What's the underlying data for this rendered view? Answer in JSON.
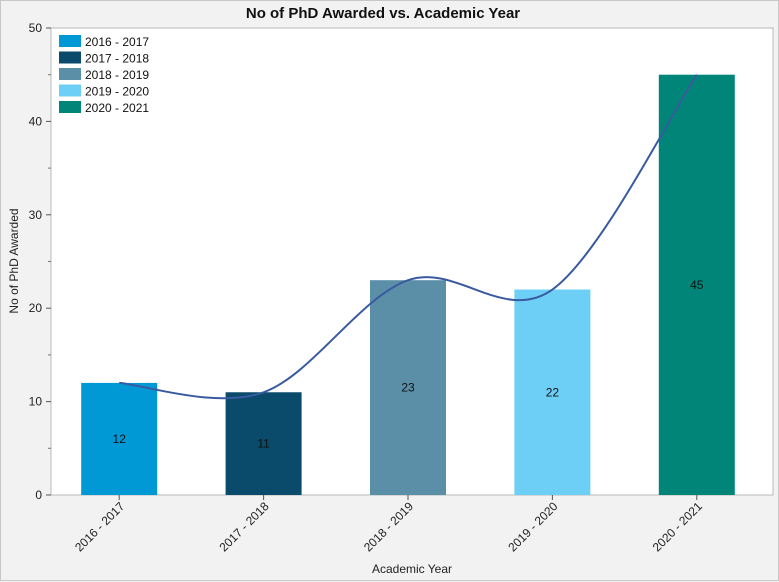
{
  "chart_data": {
    "type": "bar",
    "title": "No of PhD Awarded vs. Academic Year",
    "xlabel": "Academic Year",
    "ylabel": "No of PhD Awarded",
    "categories": [
      "2016 - 2017",
      "2017 - 2018",
      "2018 - 2019",
      "2019 - 2020",
      "2020 - 2021"
    ],
    "values": [
      12,
      11,
      23,
      22,
      45
    ],
    "data_labels": [
      "12",
      "11",
      "23",
      "22",
      "45"
    ],
    "colors": [
      "#0099d6",
      "#0a4a6a",
      "#5b8fa8",
      "#6dcff6",
      "#008578"
    ],
    "smooth_line_color": "#3a5aa0",
    "ylim": [
      0,
      50
    ],
    "yticks": [
      0,
      10,
      20,
      30,
      40,
      50
    ],
    "ytick_labels": [
      "0",
      "10",
      "20",
      "30",
      "40",
      "50"
    ],
    "legend": {
      "position": "top-left",
      "entries": [
        "2016 - 2017",
        "2017 - 2018",
        "2018 - 2019",
        "2019 - 2020",
        "2020 - 2021"
      ]
    },
    "grid": false,
    "smooth_line": true
  }
}
